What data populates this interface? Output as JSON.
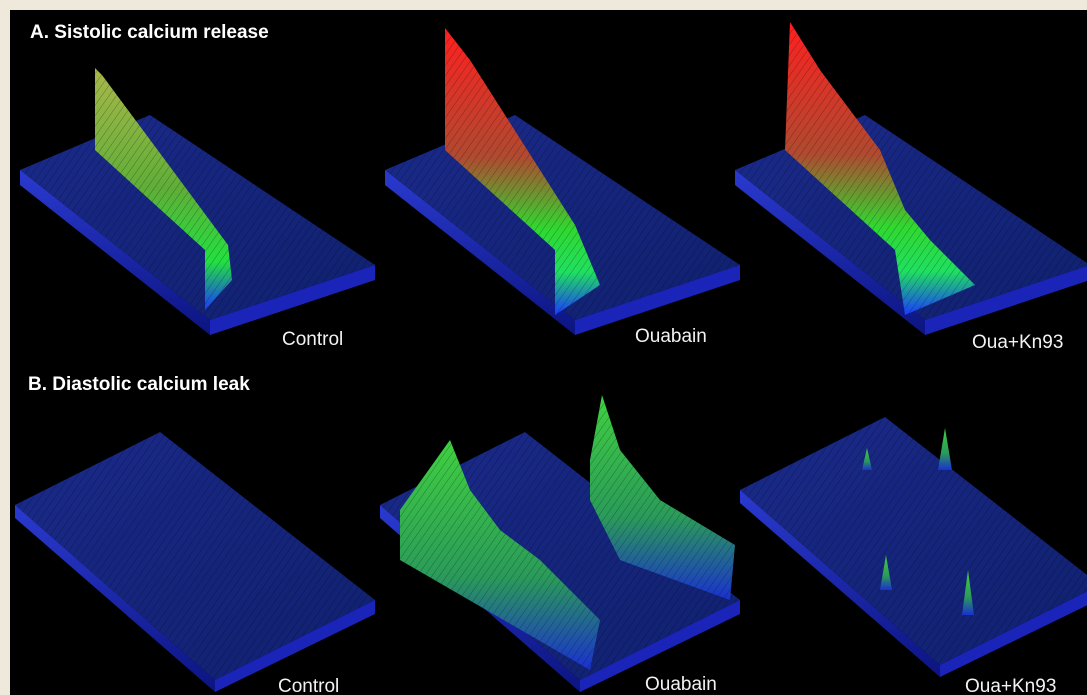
{
  "panel_a": {
    "title": "A. Sistolic calcium release",
    "labels": [
      "Control",
      "Ouabain",
      "Oua+Kn93"
    ]
  },
  "panel_b": {
    "title": "B. Diastolic calcium leak",
    "labels": [
      "Control",
      "Ouabain",
      "Oua+Kn93"
    ]
  }
}
